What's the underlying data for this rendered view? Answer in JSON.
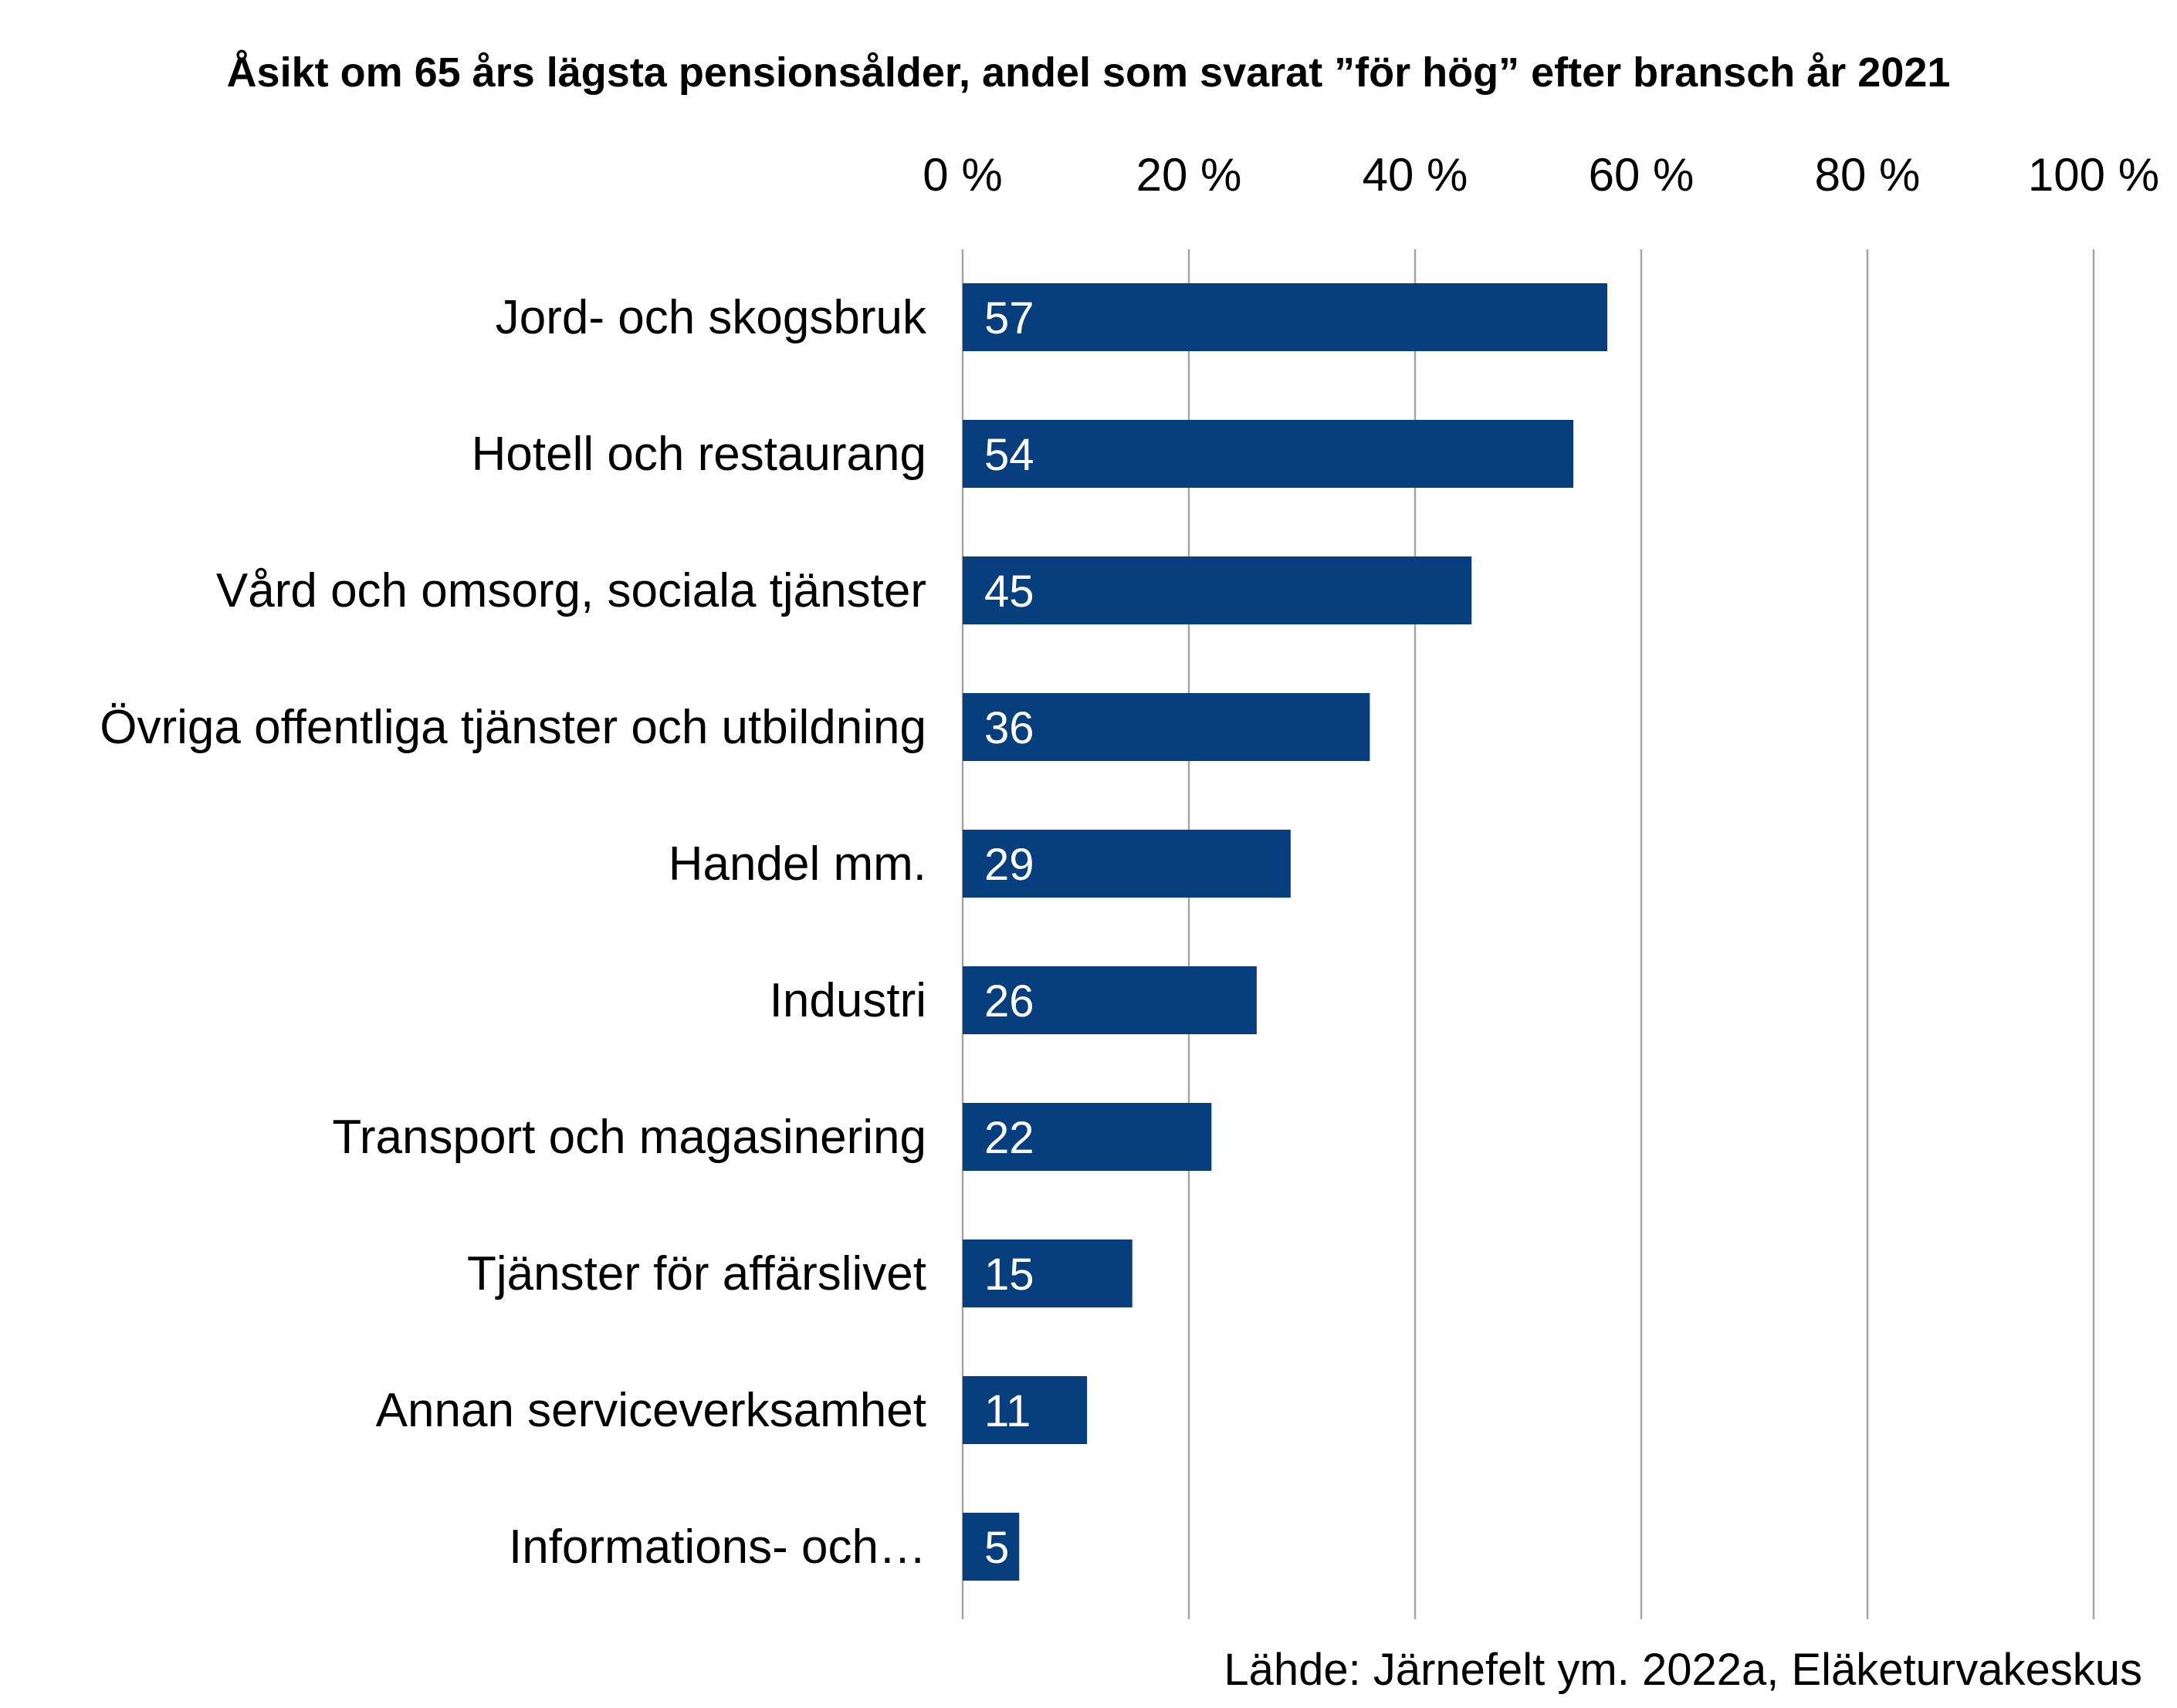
{
  "chart_data": {
    "type": "bar",
    "orientation": "horizontal",
    "title": "Åsikt om 65 års lägsta pensionsålder, andel som svarat ”för hög” efter bransch år 2021",
    "categories": [
      "Jord- och skogsbruk",
      "Hotell och restaurang",
      "Vård och omsorg, sociala tjänster",
      "Övriga offentliga tjänster och utbildning",
      "Handel mm.",
      "Industri",
      "Transport och magasinering",
      "Tjänster för affärslivet",
      "Annan serviceverksamhet",
      "Informations- och…"
    ],
    "values": [
      57,
      54,
      45,
      36,
      29,
      26,
      22,
      15,
      11,
      5
    ],
    "value_labels": [
      "57",
      "54",
      "45",
      "36",
      "29",
      "26",
      "22",
      "15",
      "11",
      "5"
    ],
    "xlim": [
      0,
      100
    ],
    "x_ticks": [
      "0 %",
      "20 %",
      "40 %",
      "60 %",
      "80 %",
      "100 %"
    ],
    "x_axis_position": "top",
    "grid": "vertical",
    "legend": "none",
    "bar_color": "#073f7e",
    "grid_color": "#a6a6a6",
    "source": "Lähde: Järnefelt ym. 2022a, Eläketurvakeskus"
  }
}
